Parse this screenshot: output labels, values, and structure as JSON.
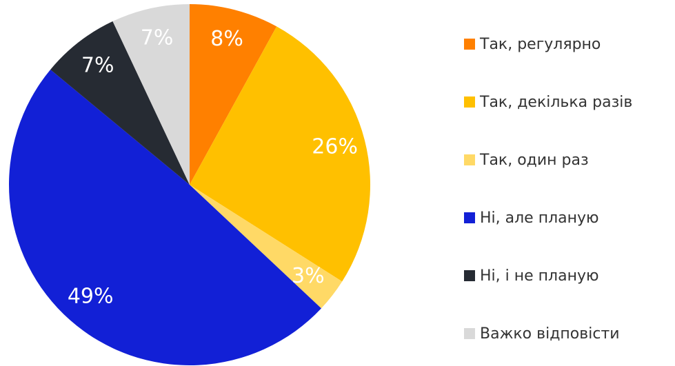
{
  "chart_data": {
    "type": "pie",
    "categories": [
      "Так, регулярно",
      "Так, декілька разів",
      "Так, один раз",
      "Ні, але планую",
      "Ні, і не планую",
      "Важко відповісти"
    ],
    "values": [
      8,
      26,
      3,
      49,
      7,
      7
    ],
    "value_labels": [
      "8%",
      "26%",
      "3%",
      "49%",
      "7%",
      "7%"
    ],
    "colors": [
      "#ff8000",
      "#ffc000",
      "#ffd966",
      "#1220d6",
      "#262b33",
      "#d9d9d9"
    ],
    "legend": "right"
  }
}
